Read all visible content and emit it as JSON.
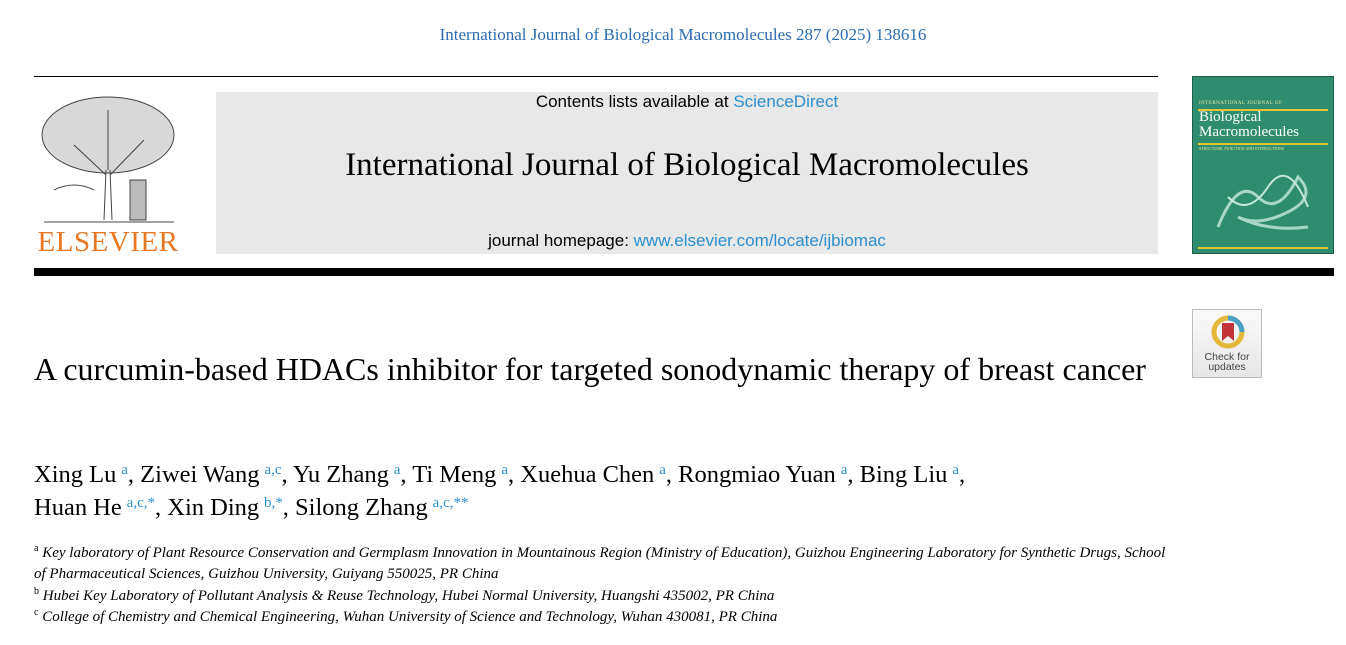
{
  "citation": "International Journal of Biological Macromolecules 287 (2025) 138616",
  "masthead": {
    "publisher": "ELSEVIER",
    "contents_prefix": "Contents lists available at ",
    "contents_link": "ScienceDirect",
    "journal_title": "International Journal of Biological Macromolecules",
    "homepage_prefix": "journal homepage: ",
    "homepage_link": "www.elsevier.com/locate/ijbiomac"
  },
  "cover": {
    "kicker": "INTERNATIONAL JOURNAL OF",
    "title_line1": "Biological",
    "title_line2": "Macromolecules",
    "subtitle": "STRUCTURE, FUNCTION AND INTERACTIONS",
    "color": "#2f8c6e"
  },
  "check_updates": {
    "line1": "Check for",
    "line2": "updates"
  },
  "article": {
    "title": "A curcumin-based HDACs inhibitor for targeted sonodynamic therapy of breast cancer",
    "authors": [
      {
        "name": "Xing Lu",
        "sup": "a"
      },
      {
        "name": "Ziwei Wang",
        "sup": "a,c"
      },
      {
        "name": "Yu Zhang",
        "sup": "a"
      },
      {
        "name": "Ti Meng",
        "sup": "a"
      },
      {
        "name": "Xuehua Chen",
        "sup": "a"
      },
      {
        "name": "Rongmiao Yuan",
        "sup": "a"
      },
      {
        "name": "Bing Liu",
        "sup": "a"
      },
      {
        "name": "Huan He",
        "sup": "a,c,*"
      },
      {
        "name": "Xin Ding",
        "sup": "b,*"
      },
      {
        "name": "Silong Zhang",
        "sup": "a,c,**"
      }
    ],
    "affiliations": [
      {
        "key": "a",
        "text": "Key laboratory of Plant Resource Conservation and Germplasm Innovation in Mountainous Region (Ministry of Education), Guizhou Engineering Laboratory for Synthetic Drugs, School of Pharmaceutical Sciences, Guizhou University, Guiyang 550025, PR China"
      },
      {
        "key": "b",
        "text": "Hubei Key Laboratory of Pollutant Analysis & Reuse Technology, Hubei Normal University, Huangshi 435002, PR China"
      },
      {
        "key": "c",
        "text": "College of Chemistry and Chemical Engineering, Wuhan University of Science and Technology, Wuhan 430081, PR China"
      }
    ]
  }
}
